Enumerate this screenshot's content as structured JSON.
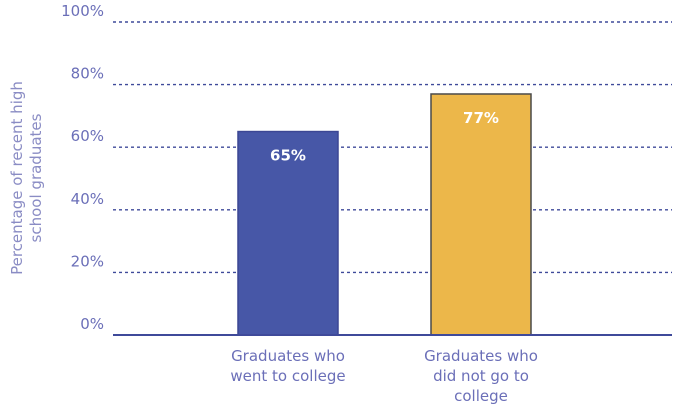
{
  "chart_data": {
    "type": "bar",
    "categories": [
      [
        "Graduates who",
        "went to college"
      ],
      [
        "Graduates who",
        "did not go to",
        "college"
      ]
    ],
    "values": [
      65,
      77
    ],
    "data_labels": [
      "65%",
      "77%"
    ],
    "colors": [
      "#4757a7",
      "#ecb74a"
    ],
    "bar_edge_colors": [
      "#3c4794",
      "#4a4a4a"
    ],
    "ylabel": [
      "Percentage of recent high",
      "school graduates"
    ],
    "yticks": [
      0,
      20,
      40,
      60,
      80,
      100
    ],
    "ytick_labels": [
      "0%",
      "20%",
      "40%",
      "60%",
      "80%",
      "100%"
    ],
    "ylim": [
      0,
      100
    ],
    "grid": true,
    "legend": "none"
  }
}
